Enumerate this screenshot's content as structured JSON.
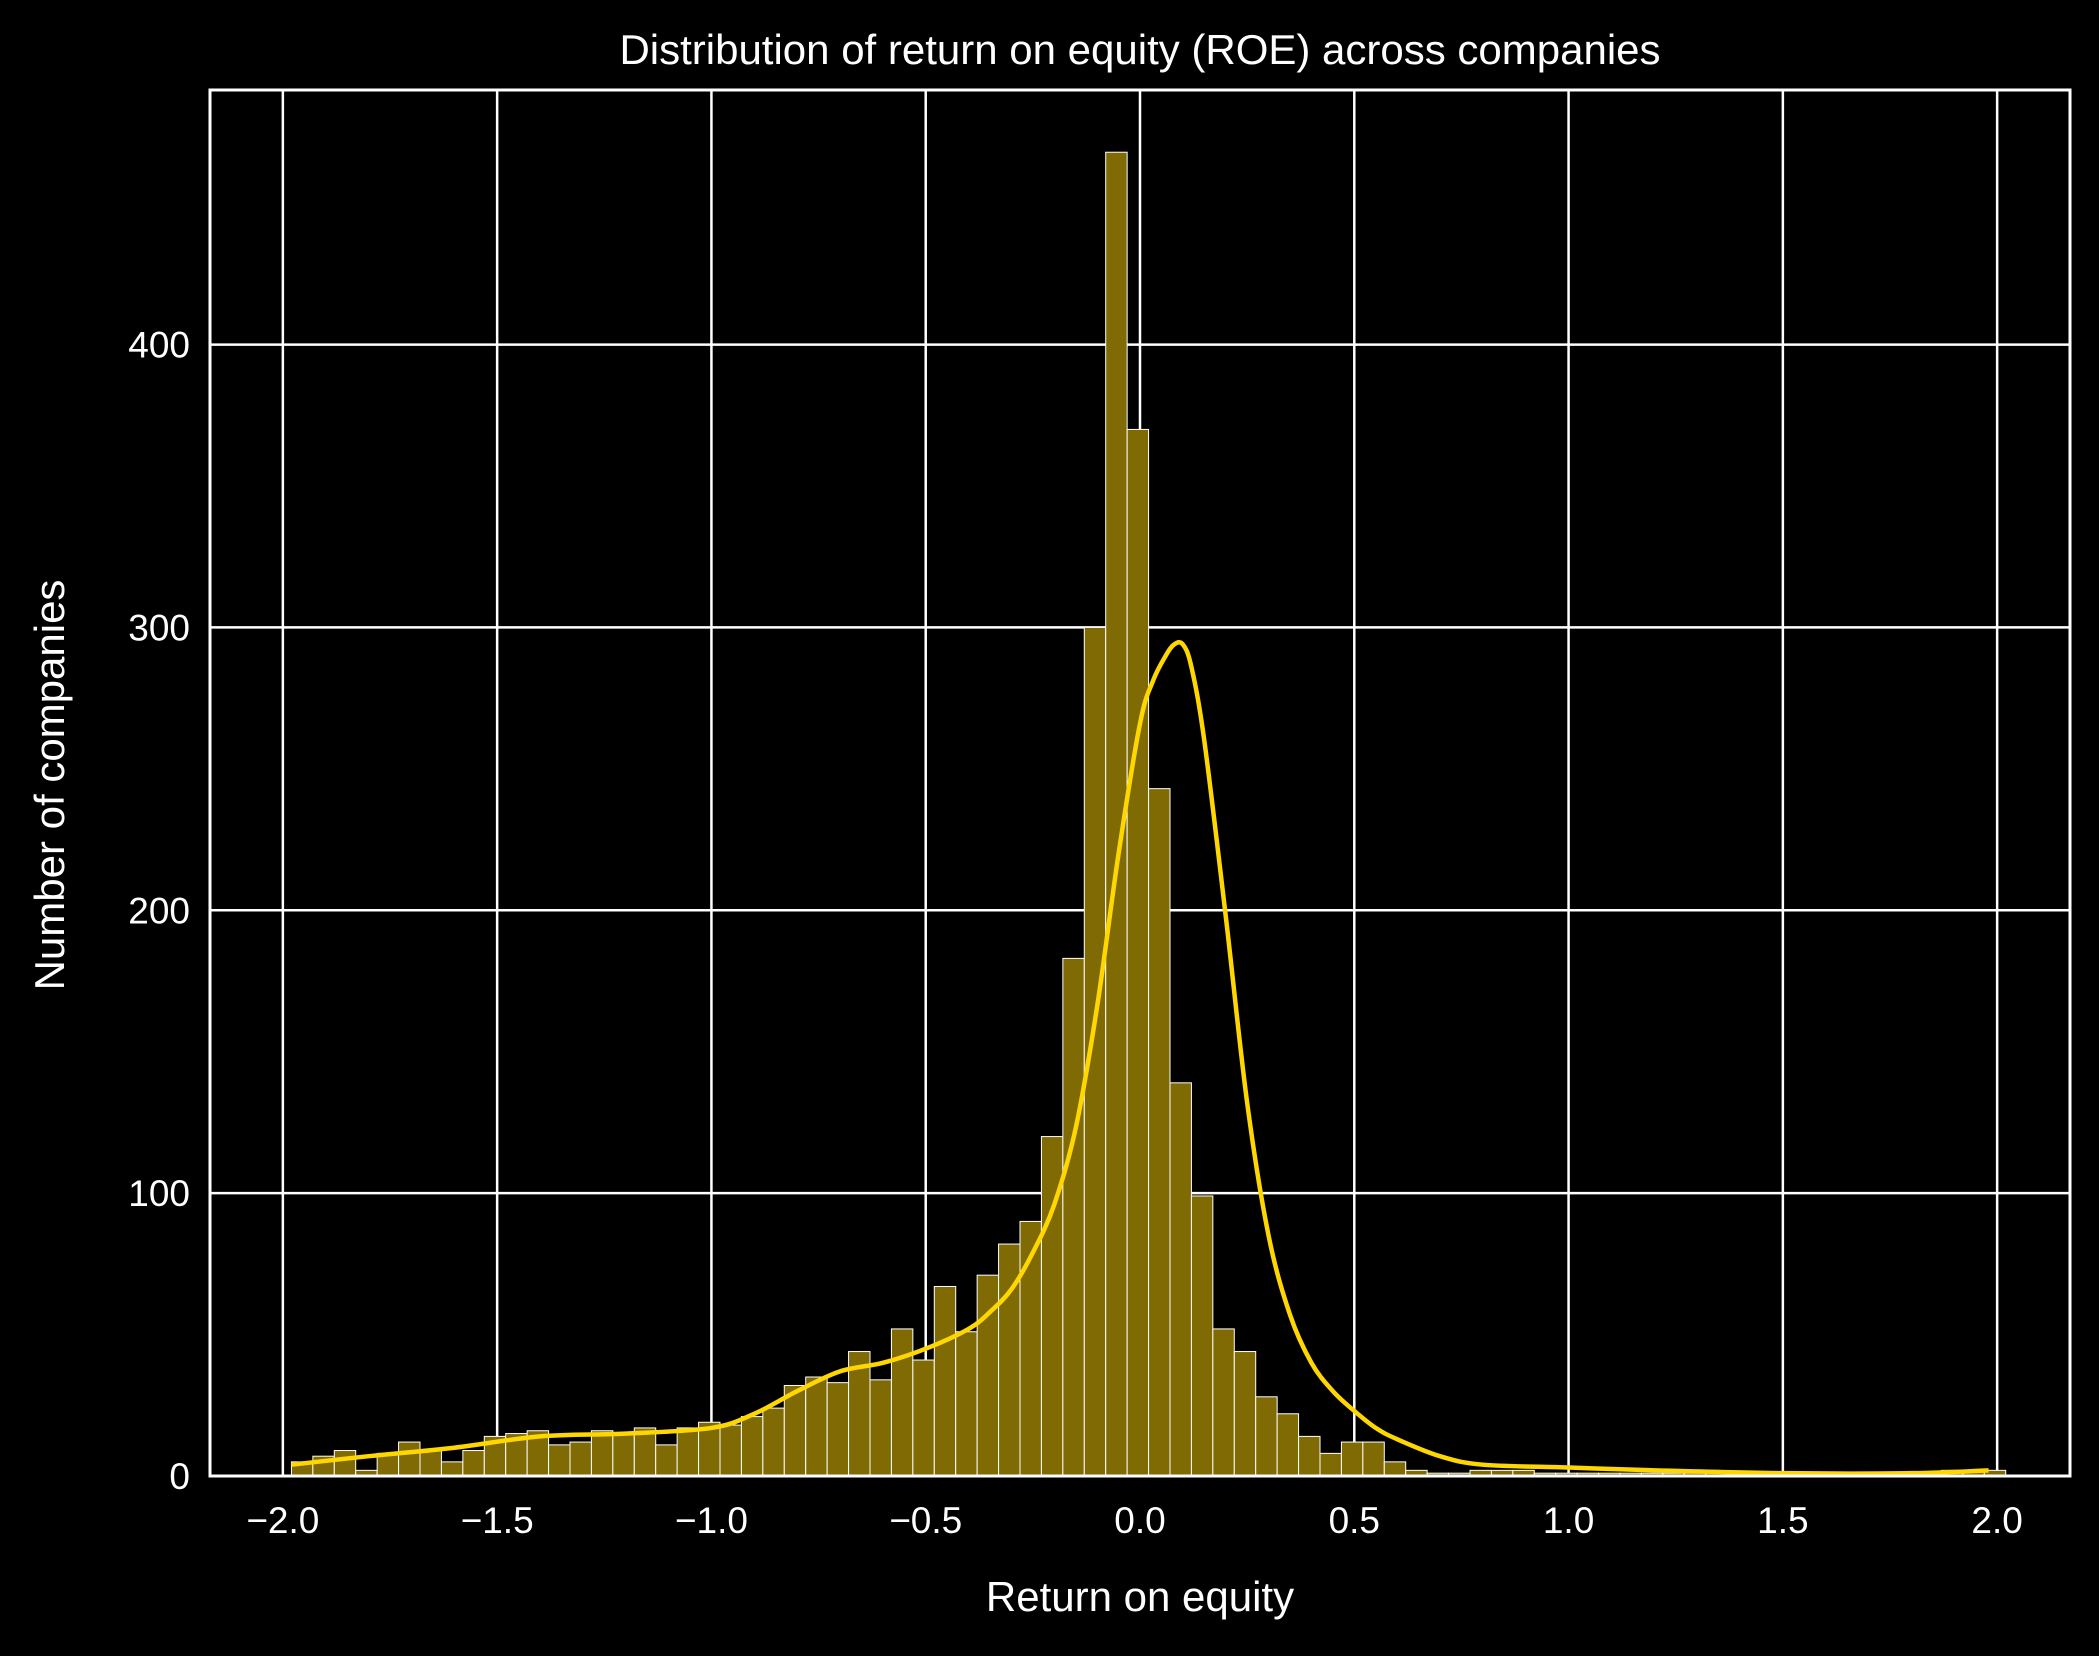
{
  "chart_data": {
    "type": "histogram",
    "title": "Distribution of return on equity (ROE) across companies",
    "xlabel": "Return on equity",
    "ylabel": "Number of companies",
    "xlim": [
      -2.17,
      2.17
    ],
    "ylim": [
      0,
      490
    ],
    "xticks": [
      -2.0,
      -1.5,
      -1.0,
      -0.5,
      0.0,
      0.5,
      1.0,
      1.5,
      2.0
    ],
    "xtick_labels": [
      "−2.0",
      "−1.5",
      "−1.0",
      "−0.5",
      "0.0",
      "0.5",
      "1.0",
      "1.5",
      "2.0"
    ],
    "yticks": [
      0,
      100,
      200,
      300,
      400
    ],
    "ytick_labels": [
      "0",
      "100",
      "200",
      "300",
      "400"
    ],
    "grid": true,
    "colors": {
      "background": "#000000",
      "bar_fill": "#7f6a03",
      "bar_edge": "#ffffff",
      "kde_line": "#ffd700",
      "grid": "#ffffff",
      "text": "#ffffff"
    },
    "bins": {
      "start": -1.98,
      "width": 0.05,
      "counts": [
        5,
        7,
        9,
        2,
        8,
        12,
        9,
        5,
        9,
        14,
        15,
        16,
        11,
        12,
        16,
        15,
        17,
        11,
        17,
        19,
        18,
        21,
        24,
        32,
        35,
        33,
        44,
        34,
        52,
        41,
        67,
        51,
        71,
        82,
        90,
        120,
        183,
        300,
        468,
        370,
        243,
        139,
        99,
        52,
        44,
        28,
        22,
        14,
        8,
        12,
        12,
        5,
        2,
        1,
        1,
        2,
        2,
        2,
        1,
        1,
        1,
        1,
        1,
        1,
        1,
        1,
        1,
        1,
        1,
        1,
        1,
        1,
        1,
        1,
        1,
        1,
        1,
        2,
        2,
        2
      ]
    },
    "kde": {
      "x": [
        -1.98,
        -1.8,
        -1.6,
        -1.4,
        -1.2,
        -1.0,
        -0.9,
        -0.8,
        -0.7,
        -0.6,
        -0.5,
        -0.4,
        -0.35,
        -0.3,
        -0.25,
        -0.2,
        -0.15,
        -0.1,
        -0.05,
        0.0,
        0.03,
        0.06,
        0.08,
        0.1,
        0.12,
        0.15,
        0.2,
        0.25,
        0.3,
        0.35,
        0.4,
        0.45,
        0.5,
        0.55,
        0.6,
        0.7,
        0.8,
        1.0,
        1.2,
        1.5,
        1.8,
        1.98
      ],
      "y": [
        4,
        7,
        10,
        14,
        15,
        17,
        22,
        30,
        37,
        40,
        45,
        52,
        58,
        66,
        79,
        96,
        123,
        166,
        220,
        266,
        281,
        290,
        294,
        294,
        286,
        260,
        198,
        132,
        85,
        57,
        40,
        30,
        23,
        17,
        13,
        7,
        4,
        3,
        2,
        1,
        1,
        2
      ]
    }
  }
}
